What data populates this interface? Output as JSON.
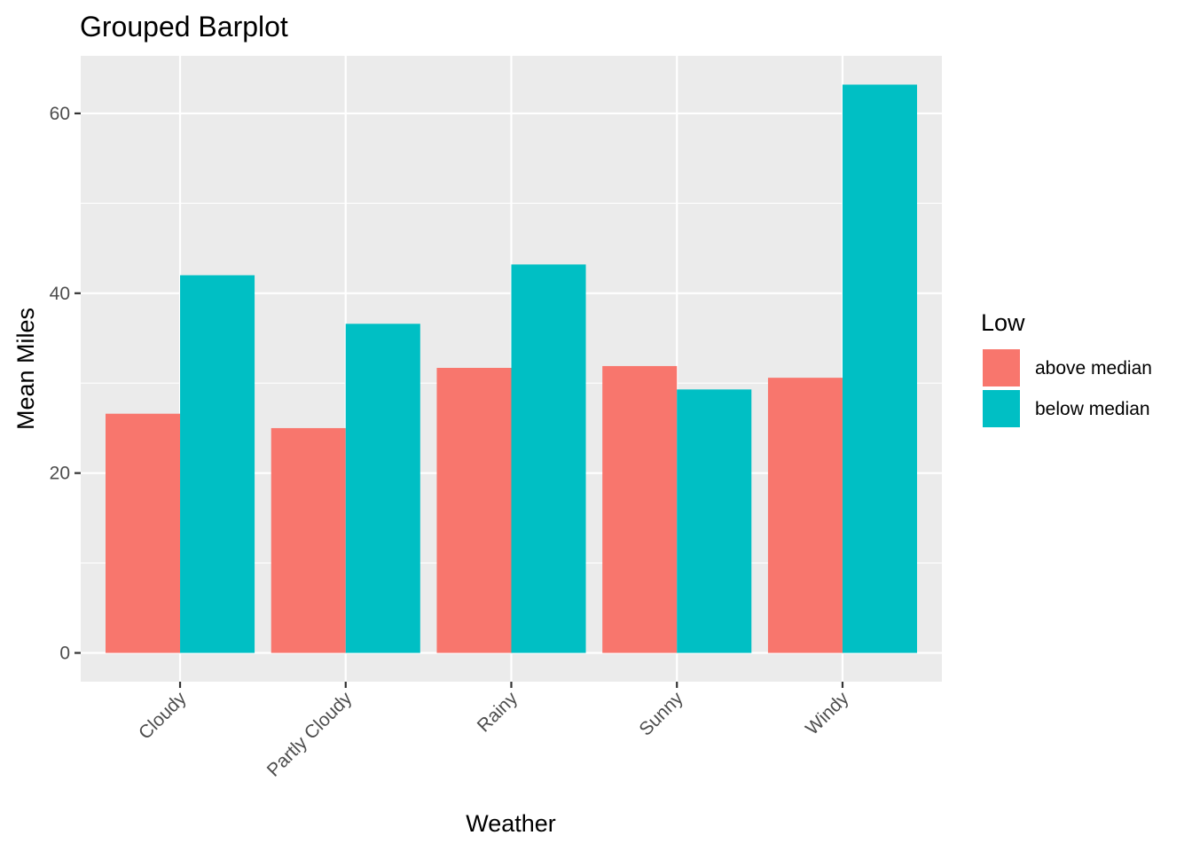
{
  "chart_data": {
    "type": "bar",
    "title": "Grouped Barplot",
    "xlabel": "Weather",
    "ylabel": "Mean Miles",
    "categories": [
      "Cloudy",
      "Partly Cloudy",
      "Rainy",
      "Sunny",
      "Windy"
    ],
    "series": [
      {
        "name": "above median",
        "color": "#F8766D",
        "values": [
          26.6,
          25.0,
          31.7,
          31.9,
          30.6
        ]
      },
      {
        "name": "below median",
        "color": "#00BFC4",
        "values": [
          42.0,
          36.6,
          43.2,
          29.3,
          63.2
        ]
      }
    ],
    "ylim": [
      -3.2,
      66.4
    ],
    "yticks": [
      0,
      20,
      40,
      60
    ],
    "grid": true,
    "legend": {
      "title": "Low",
      "position": "right"
    },
    "panel_background": "#EBEBEB",
    "x_tick_rotation": "45"
  }
}
